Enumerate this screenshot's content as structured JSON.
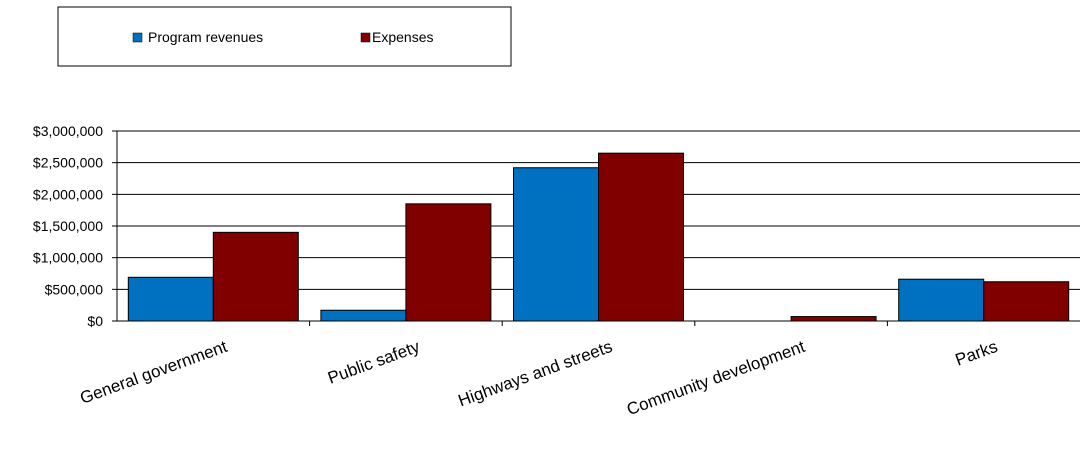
{
  "colors": {
    "program_revenues": "#0070C0",
    "expenses": "#800000",
    "gridline": "#000000",
    "bar_outline": "#000000"
  },
  "chart_data": {
    "type": "bar",
    "categories": [
      "General government",
      "Public safety",
      "Highways and streets",
      "Community development",
      "Parks"
    ],
    "series": [
      {
        "name": "Program revenues",
        "values": [
          690000,
          170000,
          2420000,
          0,
          660000
        ]
      },
      {
        "name": "Expenses",
        "values": [
          1400000,
          1850000,
          2650000,
          70000,
          620000
        ]
      }
    ],
    "ylim": [
      0,
      3000000
    ],
    "yticks": [
      0,
      500000,
      1000000,
      1500000,
      2000000,
      2500000,
      3000000
    ],
    "ytick_labels": [
      "$0",
      "$500,000",
      "$1,000,000",
      "$1,500,000",
      "$2,000,000",
      "$2,500,000",
      "$3,000,000"
    ],
    "grid": "horizontal",
    "legend_position": "top-left",
    "title": "",
    "xlabel": "",
    "ylabel": ""
  }
}
